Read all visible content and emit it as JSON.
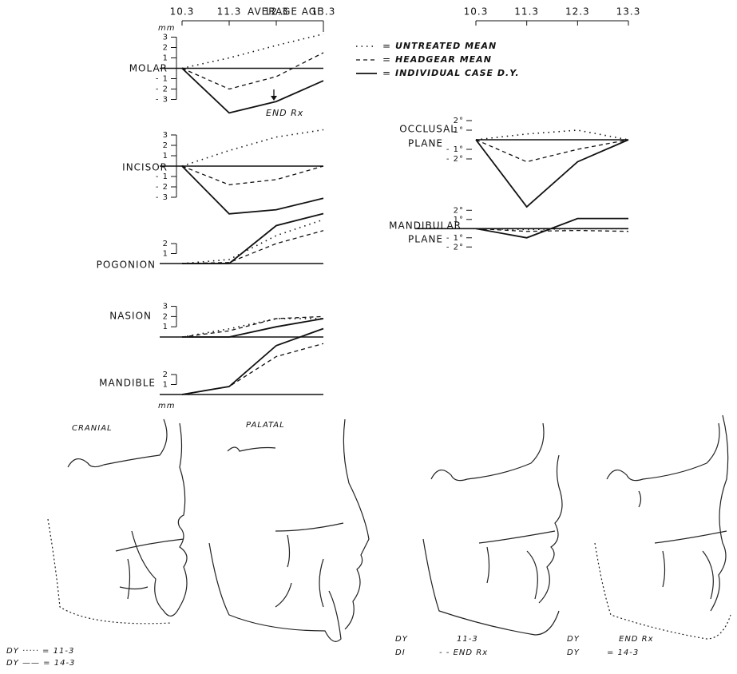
{
  "average_age_label": "AVERAGE AGE",
  "chart_data": [
    {
      "type": "line",
      "title": "MOLAR",
      "ylabel": "mm",
      "annotation": "END Rx",
      "x": [
        10.3,
        11.3,
        12.3,
        13.3
      ],
      "xlim": [
        10.3,
        13.3
      ],
      "xticks": [
        10.3,
        11.3,
        12.3,
        13.3
      ],
      "ylim": [
        -4.5,
        3.5
      ],
      "yticks": [
        3,
        2,
        1,
        {
          "value": -1,
          "label": "- 1"
        },
        {
          "value": -2,
          "label": "- 2"
        },
        {
          "value": -3,
          "label": "- 3"
        }
      ],
      "series": [
        {
          "name": "UNTREATED MEAN",
          "style": "dotted",
          "color": "#111",
          "values": [
            0,
            1,
            2.2,
            3.3
          ]
        },
        {
          "name": "HEADGEAR MEAN",
          "style": "dashed",
          "color": "#111",
          "values": [
            0,
            -2,
            -0.8,
            1.5
          ]
        },
        {
          "name": "INDIVIDUAL CASE D.Y.",
          "style": "solid",
          "color": "#111",
          "values": [
            0,
            -4.3,
            -3.2,
            -1.2
          ]
        }
      ]
    },
    {
      "type": "line",
      "title": "INCISOR",
      "x": [
        10.3,
        11.3,
        12.3,
        13.3
      ],
      "xlim": [
        10.3,
        13.3
      ],
      "ylim": [
        -5,
        3.5
      ],
      "yticks": [
        3,
        2,
        1,
        {
          "value": -1,
          "label": "- 1"
        },
        {
          "value": -2,
          "label": "- 2"
        },
        {
          "value": -3,
          "label": "- 3"
        }
      ],
      "series": [
        {
          "style": "dotted",
          "color": "#111",
          "values": [
            0,
            1.5,
            2.8,
            3.5
          ]
        },
        {
          "style": "dashed",
          "color": "#111",
          "values": [
            0,
            -1.8,
            -1.3,
            0
          ]
        },
        {
          "style": "solid",
          "color": "#111",
          "values": [
            0,
            -4.6,
            -4.2,
            -3.1
          ]
        }
      ]
    },
    {
      "type": "line",
      "title": "POGONION",
      "x": [
        10.3,
        11.3,
        12.3,
        13.3
      ],
      "xlim": [
        10.3,
        13.3
      ],
      "ylim": [
        0,
        5.2
      ],
      "yticks": [
        2,
        1
      ],
      "series": [
        {
          "style": "dotted",
          "color": "#111",
          "values": [
            0,
            0.4,
            2.8,
            4.4
          ]
        },
        {
          "style": "dashed",
          "color": "#111",
          "values": [
            0,
            0.1,
            2,
            3.3
          ]
        },
        {
          "style": "solid",
          "color": "#111",
          "values": [
            0,
            0,
            3.8,
            5
          ]
        }
      ]
    },
    {
      "type": "line",
      "title": "NASION",
      "x": [
        10.3,
        11.3,
        12.3,
        13.3
      ],
      "xlim": [
        10.3,
        13.3
      ],
      "ylim": [
        0,
        3.2
      ],
      "yticks": [
        3,
        2,
        1
      ],
      "series": [
        {
          "style": "dotted",
          "color": "#111",
          "values": [
            0,
            0.8,
            1.8,
            1.8
          ]
        },
        {
          "style": "dashed",
          "color": "#111",
          "values": [
            0,
            0.6,
            1.8,
            2
          ]
        },
        {
          "style": "solid",
          "color": "#111",
          "values": [
            0,
            0,
            1,
            1.8
          ]
        }
      ]
    },
    {
      "type": "line",
      "title": "MANDIBLE",
      "ylabel": "mm",
      "x": [
        10.3,
        11.3,
        12.3,
        13.3
      ],
      "xlim": [
        10.3,
        13.3
      ],
      "ylim": [
        0,
        7
      ],
      "yticks": [
        2,
        1
      ],
      "series": [
        {
          "style": "dashed",
          "color": "#111",
          "values": [
            0,
            0.8,
            3.8,
            5.1
          ]
        },
        {
          "style": "solid",
          "color": "#111",
          "values": [
            0,
            0.8,
            4.9,
            6.6
          ]
        }
      ]
    },
    {
      "type": "line",
      "title_lines": [
        "OCCLUSAL",
        "PLANE"
      ],
      "x": [
        10.3,
        11.3,
        12.3,
        13.3
      ],
      "xlim": [
        10.3,
        13.3
      ],
      "xticks": [
        10.3,
        11.3,
        12.3,
        13.3
      ],
      "ylim": [
        -7.5,
        2.5
      ],
      "yticks": [
        {
          "value": 2,
          "label": "2°"
        },
        {
          "value": 1,
          "label": "1°"
        },
        {
          "value": -1,
          "label": "- 1°"
        },
        {
          "value": -2,
          "label": "- 2°"
        }
      ],
      "series": [
        {
          "style": "dotted",
          "color": "#111",
          "values": [
            0,
            0.6,
            1,
            0
          ]
        },
        {
          "style": "dashed",
          "color": "#111",
          "values": [
            0,
            -2.3,
            -1,
            0
          ]
        },
        {
          "style": "solid",
          "color": "#111",
          "values": [
            0,
            -7,
            -2.3,
            0
          ]
        }
      ]
    },
    {
      "type": "line",
      "title_lines": [
        "MANDIBULAR",
        "PLANE"
      ],
      "x": [
        10.3,
        11.3,
        12.3,
        13.3
      ],
      "xlim": [
        10.3,
        13.3
      ],
      "ylim": [
        -2.5,
        2.2
      ],
      "yticks": [
        {
          "value": 2,
          "label": "2°"
        },
        {
          "value": 1,
          "label": "1°"
        },
        {
          "value": -1,
          "label": "- 1°"
        },
        {
          "value": -2,
          "label": "- 2°"
        }
      ],
      "series": [
        {
          "style": "dotted",
          "color": "#111",
          "values": [
            0,
            -0.1,
            0,
            0
          ]
        },
        {
          "style": "dashed",
          "color": "#111",
          "values": [
            0,
            -0.3,
            -0.2,
            -0.3
          ]
        },
        {
          "style": "solid",
          "color": "#111",
          "values": [
            0,
            -1,
            1.1,
            1.1
          ]
        }
      ]
    }
  ],
  "tracings": {
    "captions": [
      "CRANIAL",
      "PALATAL"
    ],
    "notes_left": [
      "DY ····· = 11-3",
      "DY —— = 14-3"
    ],
    "notes_right": [
      [
        "DY",
        "11-3"
      ],
      [
        "DI",
        "- - END Rx"
      ],
      [
        "DY",
        "END Rx"
      ],
      [
        "DY",
        "= 14-3"
      ]
    ]
  }
}
